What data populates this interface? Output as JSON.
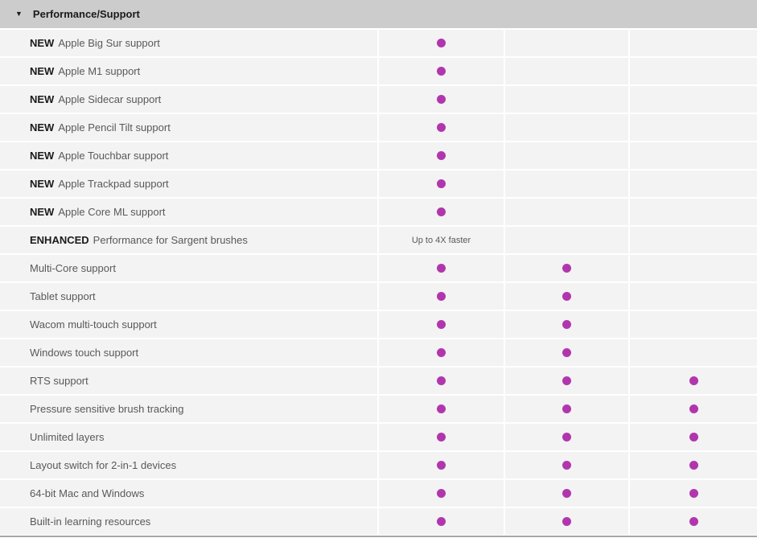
{
  "colors": {
    "accent_dot": "#b136ad",
    "header_bg": "#cccccc",
    "row_bg": "#f3f3f3",
    "label_text": "#595959",
    "bold_text": "#1a1a1a",
    "bottom_border": "#a6a6a6"
  },
  "icons": {
    "collapse_arrow": "▼"
  },
  "section": {
    "title": "Performance/Support",
    "expanded": true
  },
  "table": {
    "rows": [
      {
        "prefix": "NEW",
        "label": "Apple Big Sur support",
        "cells": [
          "dot",
          "",
          ""
        ]
      },
      {
        "prefix": "NEW",
        "label": "Apple M1 support",
        "cells": [
          "dot",
          "",
          ""
        ]
      },
      {
        "prefix": "NEW",
        "label": "Apple Sidecar support",
        "cells": [
          "dot",
          "",
          ""
        ]
      },
      {
        "prefix": "NEW",
        "label": "Apple Pencil Tilt support",
        "cells": [
          "dot",
          "",
          ""
        ]
      },
      {
        "prefix": "NEW",
        "label": "Apple Touchbar support",
        "cells": [
          "dot",
          "",
          ""
        ]
      },
      {
        "prefix": "NEW",
        "label": "Apple Trackpad support",
        "cells": [
          "dot",
          "",
          ""
        ]
      },
      {
        "prefix": "NEW",
        "label": "Apple Core ML support",
        "cells": [
          "dot",
          "",
          ""
        ]
      },
      {
        "prefix": "ENHANCED",
        "label": "Performance for Sargent brushes",
        "cells": [
          "Up to 4X faster",
          "",
          ""
        ]
      },
      {
        "prefix": "",
        "label": "Multi-Core support",
        "cells": [
          "dot",
          "dot",
          ""
        ]
      },
      {
        "prefix": "",
        "label": "Tablet support",
        "cells": [
          "dot",
          "dot",
          ""
        ]
      },
      {
        "prefix": "",
        "label": "Wacom multi-touch support",
        "cells": [
          "dot",
          "dot",
          ""
        ]
      },
      {
        "prefix": "",
        "label": "Windows touch support",
        "cells": [
          "dot",
          "dot",
          ""
        ]
      },
      {
        "prefix": "",
        "label": "RTS support",
        "cells": [
          "dot",
          "dot",
          "dot"
        ]
      },
      {
        "prefix": "",
        "label": "Pressure sensitive brush tracking",
        "cells": [
          "dot",
          "dot",
          "dot"
        ]
      },
      {
        "prefix": "",
        "label": "Unlimited layers",
        "cells": [
          "dot",
          "dot",
          "dot"
        ]
      },
      {
        "prefix": "",
        "label": "Layout switch for 2-in-1 devices",
        "cells": [
          "dot",
          "dot",
          "dot"
        ]
      },
      {
        "prefix": "",
        "label": "64-bit Mac and Windows",
        "cells": [
          "dot",
          "dot",
          "dot"
        ]
      },
      {
        "prefix": "",
        "label": "Built-in learning resources",
        "cells": [
          "dot",
          "dot",
          "dot"
        ]
      }
    ]
  }
}
